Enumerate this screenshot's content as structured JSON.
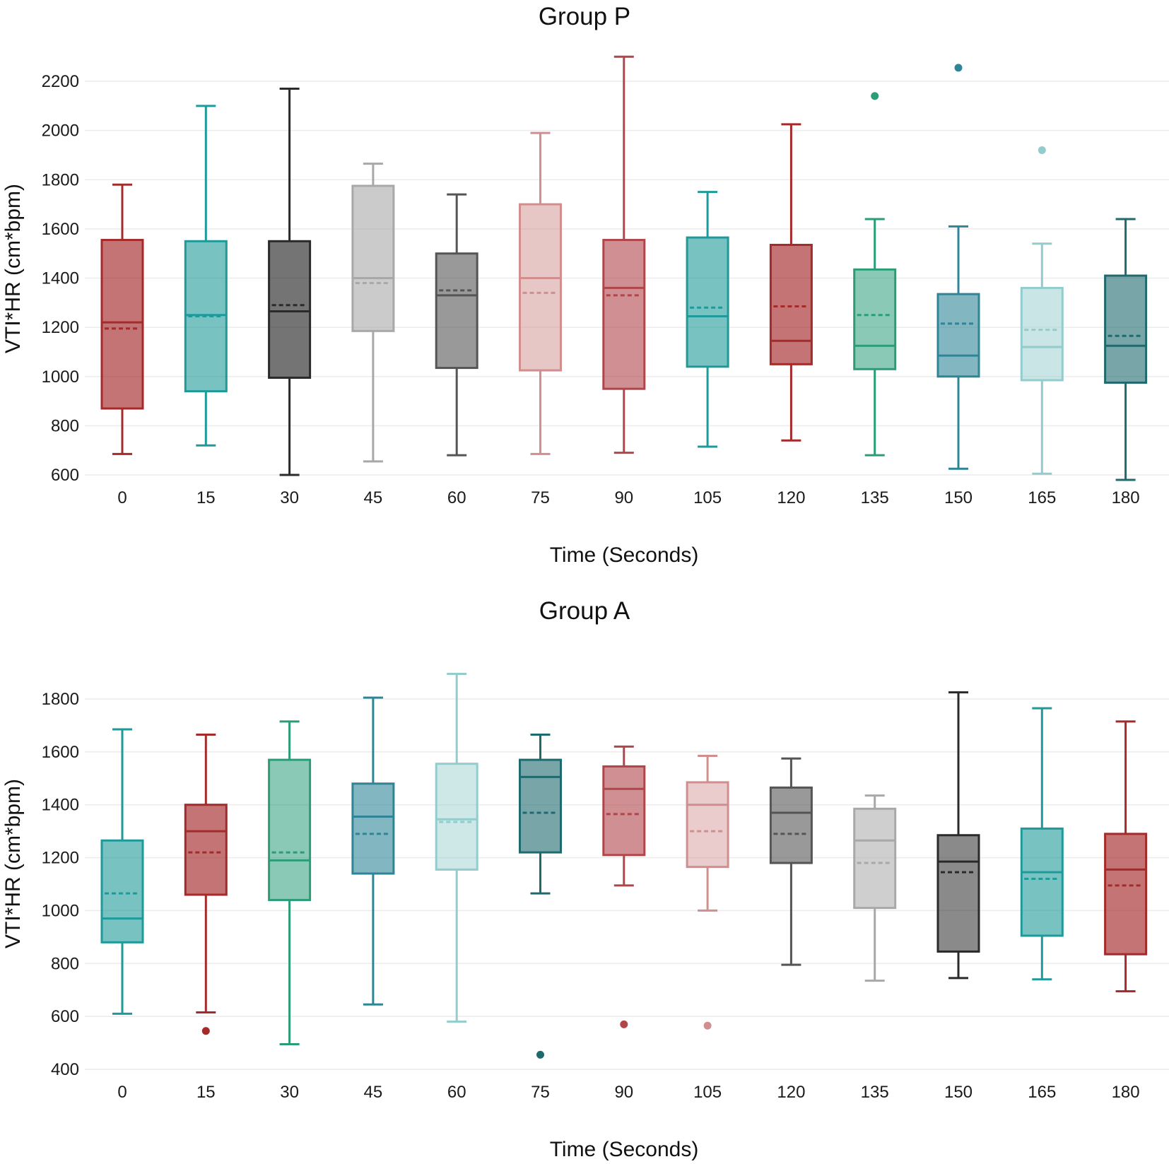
{
  "chart_data": [
    {
      "type": "box",
      "title": "Group P",
      "xlabel": "Time (Seconds)",
      "ylabel": "VTI*HR (cm*bpm)",
      "ylim": [
        600,
        2300
      ],
      "yticks": [
        600,
        800,
        1000,
        1200,
        1400,
        1600,
        1800,
        2000,
        2200
      ],
      "categories": [
        "0",
        "15",
        "30",
        "45",
        "60",
        "75",
        "90",
        "105",
        "120",
        "135",
        "150",
        "165",
        "180"
      ],
      "boxes": [
        {
          "category": "0",
          "color": "#a52a2a",
          "alpha": 0.65,
          "whisker_low": 685,
          "q1": 870,
          "median": 1220,
          "mean": 1195,
          "q3": 1555,
          "whisker_high": 1780,
          "outliers": []
        },
        {
          "category": "15",
          "color": "#1e9a9a",
          "alpha": 0.6,
          "whisker_low": 720,
          "q1": 940,
          "median": 1250,
          "mean": 1245,
          "q3": 1550,
          "whisker_high": 2100,
          "outliers": []
        },
        {
          "category": "30",
          "color": "#2a2a2a",
          "alpha": 0.65,
          "whisker_low": 600,
          "q1": 995,
          "median": 1265,
          "mean": 1290,
          "q3": 1550,
          "whisker_high": 2170,
          "outliers": []
        },
        {
          "category": "45",
          "color": "#a8a8a8",
          "alpha": 0.6,
          "whisker_low": 655,
          "q1": 1185,
          "median": 1400,
          "mean": 1380,
          "q3": 1775,
          "whisker_high": 1865,
          "outliers": []
        },
        {
          "category": "60",
          "color": "#555555",
          "alpha": 0.6,
          "whisker_low": 680,
          "q1": 1035,
          "median": 1330,
          "mean": 1350,
          "q3": 1500,
          "whisker_high": 1740,
          "outliers": []
        },
        {
          "category": "75",
          "color": "#d08e8e",
          "alpha": 0.5,
          "whisker_low": 685,
          "q1": 1025,
          "median": 1400,
          "mean": 1340,
          "q3": 1700,
          "whisker_high": 1990,
          "outliers": []
        },
        {
          "category": "90",
          "color": "#b0454a",
          "alpha": 0.6,
          "whisker_low": 690,
          "q1": 950,
          "median": 1360,
          "mean": 1330,
          "q3": 1555,
          "whisker_high": 2300,
          "outliers": []
        },
        {
          "category": "105",
          "color": "#1e9a9a",
          "alpha": 0.6,
          "whisker_low": 715,
          "q1": 1040,
          "median": 1245,
          "mean": 1280,
          "q3": 1565,
          "whisker_high": 1750,
          "outliers": []
        },
        {
          "category": "120",
          "color": "#a52a2a",
          "alpha": 0.65,
          "whisker_low": 740,
          "q1": 1050,
          "median": 1145,
          "mean": 1285,
          "q3": 1535,
          "whisker_high": 2025,
          "outliers": []
        },
        {
          "category": "135",
          "color": "#2a9d78",
          "alpha": 0.55,
          "whisker_low": 680,
          "q1": 1030,
          "median": 1125,
          "mean": 1250,
          "q3": 1435,
          "whisker_high": 1640,
          "outliers": [
            2140
          ]
        },
        {
          "category": "150",
          "color": "#2e8596",
          "alpha": 0.6,
          "whisker_low": 625,
          "q1": 1000,
          "median": 1085,
          "mean": 1215,
          "q3": 1335,
          "whisker_high": 1610,
          "outliers": [
            2255
          ]
        },
        {
          "category": "165",
          "color": "#93cccc",
          "alpha": 0.5,
          "whisker_low": 605,
          "q1": 985,
          "median": 1120,
          "mean": 1190,
          "q3": 1360,
          "whisker_high": 1540,
          "outliers": [
            1920
          ]
        },
        {
          "category": "180",
          "color": "#1e6a6e",
          "alpha": 0.6,
          "whisker_low": 580,
          "q1": 975,
          "median": 1125,
          "mean": 1165,
          "q3": 1410,
          "whisker_high": 1640,
          "outliers": []
        }
      ]
    },
    {
      "type": "box",
      "title": "Group A",
      "xlabel": "Time (Seconds)",
      "ylabel": "VTI*HR (cm*bpm)",
      "ylim": [
        400,
        1900
      ],
      "yticks": [
        400,
        600,
        800,
        1000,
        1200,
        1400,
        1600,
        1800
      ],
      "categories": [
        "0",
        "15",
        "30",
        "45",
        "60",
        "75",
        "90",
        "105",
        "120",
        "135",
        "150",
        "165",
        "180"
      ],
      "boxes": [
        {
          "category": "0",
          "color": "#1e9a9a",
          "alpha": 0.6,
          "whisker_low": 610,
          "q1": 880,
          "median": 970,
          "mean": 1065,
          "q3": 1265,
          "whisker_high": 1685,
          "outliers": []
        },
        {
          "category": "15",
          "color": "#a52a2a",
          "alpha": 0.65,
          "whisker_low": 615,
          "q1": 1060,
          "median": 1300,
          "mean": 1220,
          "q3": 1400,
          "whisker_high": 1665,
          "outliers": [
            545
          ]
        },
        {
          "category": "30",
          "color": "#2a9d78",
          "alpha": 0.55,
          "whisker_low": 495,
          "q1": 1040,
          "median": 1190,
          "mean": 1220,
          "q3": 1570,
          "whisker_high": 1715,
          "outliers": []
        },
        {
          "category": "45",
          "color": "#2e8596",
          "alpha": 0.6,
          "whisker_low": 645,
          "q1": 1140,
          "median": 1355,
          "mean": 1290,
          "q3": 1480,
          "whisker_high": 1805,
          "outliers": []
        },
        {
          "category": "60",
          "color": "#93cccc",
          "alpha": 0.45,
          "whisker_low": 580,
          "q1": 1155,
          "median": 1345,
          "mean": 1335,
          "q3": 1555,
          "whisker_high": 1895,
          "outliers": []
        },
        {
          "category": "75",
          "color": "#1e6a6e",
          "alpha": 0.6,
          "whisker_low": 1065,
          "q1": 1220,
          "median": 1505,
          "mean": 1370,
          "q3": 1570,
          "whisker_high": 1665,
          "outliers": [
            455
          ]
        },
        {
          "category": "90",
          "color": "#b0454a",
          "alpha": 0.6,
          "whisker_low": 1095,
          "q1": 1210,
          "median": 1460,
          "mean": 1365,
          "q3": 1545,
          "whisker_high": 1620,
          "outliers": [
            570
          ]
        },
        {
          "category": "105",
          "color": "#d08e8e",
          "alpha": 0.45,
          "whisker_low": 1000,
          "q1": 1165,
          "median": 1400,
          "mean": 1300,
          "q3": 1485,
          "whisker_high": 1585,
          "outliers": [
            565
          ]
        },
        {
          "category": "120",
          "color": "#555555",
          "alpha": 0.6,
          "whisker_low": 795,
          "q1": 1180,
          "median": 1370,
          "mean": 1290,
          "q3": 1465,
          "whisker_high": 1575,
          "outliers": []
        },
        {
          "category": "135",
          "color": "#a8a8a8",
          "alpha": 0.55,
          "whisker_low": 735,
          "q1": 1010,
          "median": 1265,
          "mean": 1180,
          "q3": 1385,
          "whisker_high": 1435,
          "outliers": []
        },
        {
          "category": "150",
          "color": "#2a2a2a",
          "alpha": 0.55,
          "whisker_low": 745,
          "q1": 845,
          "median": 1185,
          "mean": 1145,
          "q3": 1285,
          "whisker_high": 1825,
          "outliers": []
        },
        {
          "category": "165",
          "color": "#1e9a9a",
          "alpha": 0.6,
          "whisker_low": 740,
          "q1": 905,
          "median": 1145,
          "mean": 1120,
          "q3": 1310,
          "whisker_high": 1765,
          "outliers": []
        },
        {
          "category": "180",
          "color": "#a52a2a",
          "alpha": 0.65,
          "whisker_low": 695,
          "q1": 835,
          "median": 1155,
          "mean": 1095,
          "q3": 1290,
          "whisker_high": 1715,
          "outliers": []
        }
      ]
    }
  ]
}
